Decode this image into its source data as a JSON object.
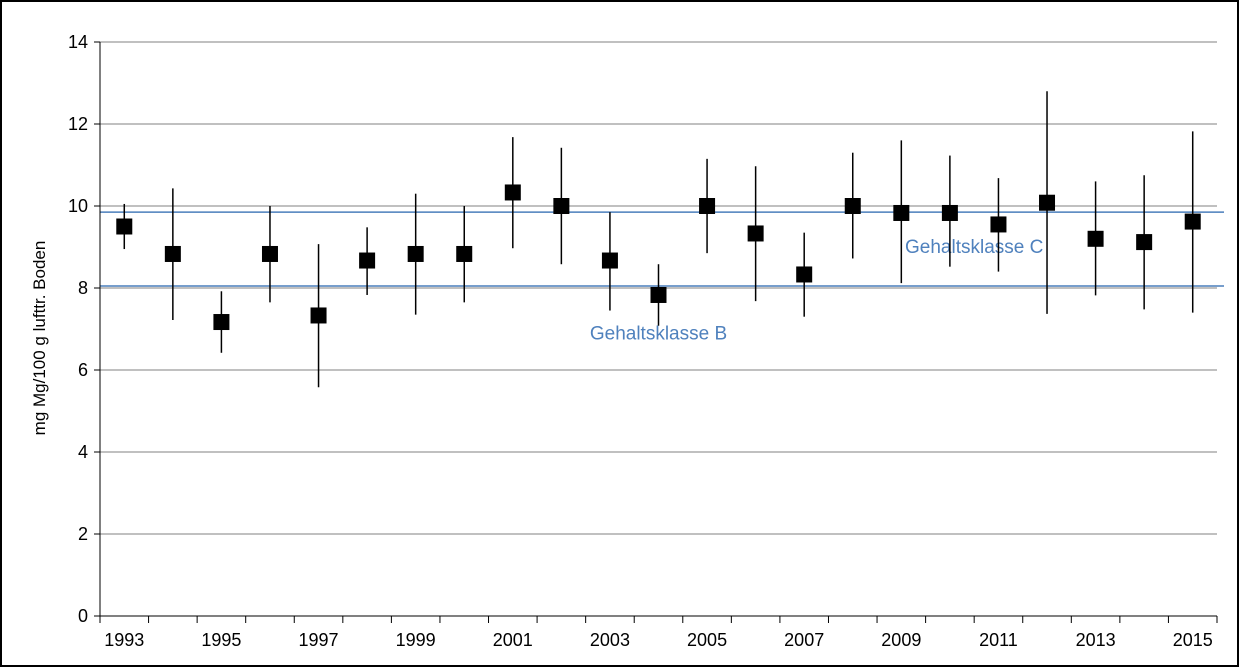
{
  "chart_data": {
    "type": "scatter",
    "title": "",
    "xlabel": "",
    "ylabel": "mg Mg/100 g lufttr. Boden",
    "ylim": [
      0,
      14
    ],
    "yticks": [
      "0",
      "2",
      "4",
      "6",
      "8",
      "10",
      "12",
      "14"
    ],
    "xlim": [
      1992.5,
      2015.5
    ],
    "xticks": [
      "1993",
      "1995",
      "1997",
      "1999",
      "2001",
      "2003",
      "2005",
      "2007",
      "2009",
      "2011",
      "2013",
      "2015"
    ],
    "grid": "horizontal",
    "points": [
      {
        "x": 1993,
        "y": 9.5,
        "low": 8.95,
        "high": 10.05
      },
      {
        "x": 1994,
        "y": 8.83,
        "low": 7.22,
        "high": 10.43
      },
      {
        "x": 1995,
        "y": 7.17,
        "low": 6.42,
        "high": 7.92
      },
      {
        "x": 1996,
        "y": 8.83,
        "low": 7.65,
        "high": 10.0
      },
      {
        "x": 1997,
        "y": 7.33,
        "low": 5.58,
        "high": 9.07
      },
      {
        "x": 1998,
        "y": 8.67,
        "low": 7.83,
        "high": 9.48
      },
      {
        "x": 1999,
        "y": 8.83,
        "low": 7.35,
        "high": 10.3
      },
      {
        "x": 2000,
        "y": 8.83,
        "low": 7.65,
        "high": 10.0
      },
      {
        "x": 2001,
        "y": 10.33,
        "low": 8.97,
        "high": 11.68
      },
      {
        "x": 2002,
        "y": 10.0,
        "low": 8.58,
        "high": 11.42
      },
      {
        "x": 2003,
        "y": 8.67,
        "low": 7.45,
        "high": 9.85
      },
      {
        "x": 2004,
        "y": 7.83,
        "low": 7.08,
        "high": 8.58
      },
      {
        "x": 2005,
        "y": 10.0,
        "low": 8.85,
        "high": 11.15
      },
      {
        "x": 2006,
        "y": 9.33,
        "low": 7.68,
        "high": 10.97
      },
      {
        "x": 2007,
        "y": 8.33,
        "low": 7.3,
        "high": 9.35
      },
      {
        "x": 2008,
        "y": 10.0,
        "low": 8.72,
        "high": 11.3
      },
      {
        "x": 2009,
        "y": 9.83,
        "low": 8.12,
        "high": 11.6
      },
      {
        "x": 2010,
        "y": 9.83,
        "low": 8.52,
        "high": 11.23
      },
      {
        "x": 2011,
        "y": 9.55,
        "low": 8.4,
        "high": 10.68
      },
      {
        "x": 2012,
        "y": 10.08,
        "low": 7.37,
        "high": 12.8
      },
      {
        "x": 2013,
        "y": 9.2,
        "low": 7.82,
        "high": 10.6
      },
      {
        "x": 2014,
        "y": 9.12,
        "low": 7.48,
        "high": 10.75
      },
      {
        "x": 2015,
        "y": 9.62,
        "low": 7.4,
        "high": 11.82
      }
    ],
    "reference_lines": [
      {
        "y": 9.85,
        "label": "Gehaltsklasse C",
        "label_x": 2010.5,
        "label_y": 8.85
      },
      {
        "y": 8.05,
        "label": "Gehaltsklasse B",
        "label_x": 2004.0,
        "label_y": 6.75
      }
    ],
    "colors": {
      "marker": "#000000",
      "reference_line": "#4a7ebb",
      "reference_label": "#4f81bd",
      "grid": "#808080"
    }
  }
}
